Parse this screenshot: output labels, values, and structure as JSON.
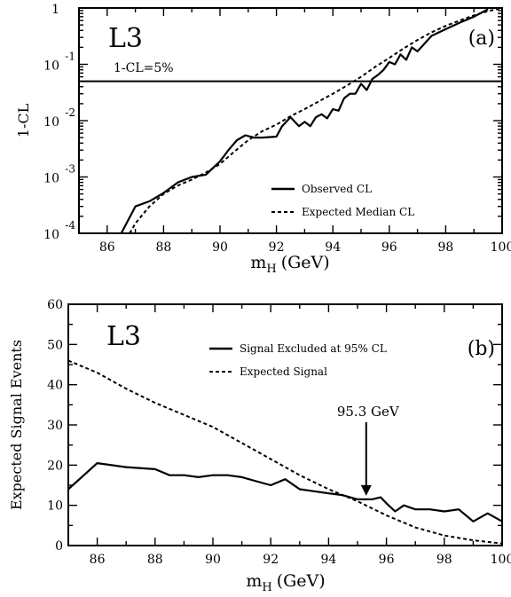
{
  "chart_data": [
    {
      "type": "line",
      "panel_label": "(a)",
      "experiment_label": "L3",
      "xlabel": "m",
      "xlabel_sub": "H",
      "xlabel_unit": "(GeV)",
      "ylabel": "1-CL",
      "xlim": [
        85,
        100
      ],
      "ylim": [
        0.0001,
        1
      ],
      "yscale": "log",
      "x_ticks": [
        86,
        88,
        90,
        92,
        94,
        96,
        98,
        100
      ],
      "y_ticks": [
        {
          "value": 1,
          "base": "1",
          "exp": ""
        },
        {
          "value": 0.1,
          "base": "10",
          "exp": "-1"
        },
        {
          "value": 0.01,
          "base": "10",
          "exp": "-2"
        },
        {
          "value": 0.001,
          "base": "10",
          "exp": "-3"
        },
        {
          "value": 0.0001,
          "base": "10",
          "exp": "-4"
        }
      ],
      "reference_line": {
        "y": 0.05,
        "label": "1-CL=5%"
      },
      "legend_position": "lower-right",
      "series": [
        {
          "name": "Observed CL",
          "style": "solid",
          "x": [
            86.5,
            87.0,
            87.5,
            88.0,
            88.5,
            89.0,
            89.5,
            90.0,
            90.3,
            90.6,
            90.9,
            91.2,
            91.5,
            92.0,
            92.2,
            92.5,
            92.8,
            93.0,
            93.2,
            93.4,
            93.6,
            93.8,
            94.0,
            94.2,
            94.4,
            94.6,
            94.8,
            95.0,
            95.2,
            95.4,
            95.6,
            95.8,
            96.0,
            96.2,
            96.4,
            96.6,
            96.8,
            97.0,
            97.5,
            98.0,
            98.5,
            99.0,
            99.5
          ],
          "y": [
            0.0001,
            0.0003,
            0.00037,
            0.00052,
            0.0008,
            0.001,
            0.0011,
            0.0019,
            0.003,
            0.0045,
            0.0055,
            0.005,
            0.005,
            0.0052,
            0.008,
            0.0115,
            0.008,
            0.0095,
            0.008,
            0.0115,
            0.013,
            0.011,
            0.016,
            0.015,
            0.025,
            0.03,
            0.03,
            0.045,
            0.035,
            0.055,
            0.065,
            0.08,
            0.11,
            0.1,
            0.15,
            0.12,
            0.2,
            0.17,
            0.32,
            0.42,
            0.55,
            0.7,
            0.95
          ]
        },
        {
          "name": "Expected Median CL",
          "style": "dashed",
          "x": [
            86.8,
            87.0,
            87.5,
            88.0,
            88.5,
            89.0,
            89.5,
            90.0,
            90.5,
            91.0,
            91.5,
            92.0,
            92.5,
            93.0,
            93.5,
            94.0,
            94.5,
            95.0,
            95.5,
            96.0,
            96.5,
            97.0,
            97.5,
            98.0,
            98.5,
            99.0,
            99.5,
            100.0
          ],
          "y": [
            0.0001,
            0.00015,
            0.0003,
            0.0005,
            0.0007,
            0.0009,
            0.0012,
            0.0017,
            0.0028,
            0.0045,
            0.0065,
            0.0085,
            0.012,
            0.016,
            0.022,
            0.03,
            0.042,
            0.06,
            0.09,
            0.13,
            0.19,
            0.27,
            0.37,
            0.48,
            0.6,
            0.74,
            0.88,
            1.0
          ]
        }
      ]
    },
    {
      "type": "line",
      "panel_label": "(b)",
      "experiment_label": "L3",
      "xlabel": "m",
      "xlabel_sub": "H",
      "xlabel_unit": "(GeV)",
      "ylabel": "Expected Signal Events",
      "xlim": [
        85,
        100
      ],
      "ylim": [
        0,
        60
      ],
      "x_ticks": [
        86,
        88,
        90,
        92,
        94,
        96,
        98,
        100
      ],
      "y_ticks": [
        0,
        10,
        20,
        30,
        40,
        50,
        60
      ],
      "annotation": {
        "text": "95.3 GeV",
        "x": 95.3,
        "y": 11.5
      },
      "legend_position": "upper-right",
      "series": [
        {
          "name": "Signal Excluded at 95% CL",
          "style": "solid",
          "x": [
            85.0,
            86.0,
            87.0,
            88.0,
            88.5,
            89.0,
            89.5,
            90.0,
            90.5,
            91.0,
            91.5,
            92.0,
            92.5,
            93.0,
            93.5,
            94.0,
            94.5,
            95.0,
            95.3,
            95.5,
            95.8,
            96.0,
            96.3,
            96.6,
            97.0,
            97.5,
            98.0,
            98.5,
            99.0,
            99.5,
            100.0
          ],
          "y": [
            14.0,
            20.5,
            19.5,
            19.0,
            17.5,
            17.5,
            17.0,
            17.5,
            17.5,
            17.0,
            16.0,
            15.0,
            16.5,
            14.0,
            13.5,
            13.0,
            12.5,
            11.5,
            11.5,
            11.5,
            12.0,
            10.5,
            8.5,
            10.0,
            9.0,
            9.0,
            8.5,
            9.0,
            6.0,
            8.0,
            6.0
          ]
        },
        {
          "name": "Expected Signal",
          "style": "dashed",
          "x": [
            85.0,
            86.0,
            87.0,
            88.0,
            89.0,
            90.0,
            91.0,
            92.0,
            93.0,
            94.0,
            95.0,
            96.0,
            97.0,
            98.0,
            99.0,
            100.0
          ],
          "y": [
            46.0,
            43.0,
            39.0,
            35.5,
            32.5,
            29.5,
            25.5,
            21.5,
            17.5,
            14.0,
            11.0,
            7.5,
            4.5,
            2.5,
            1.3,
            0.5
          ]
        }
      ]
    }
  ]
}
